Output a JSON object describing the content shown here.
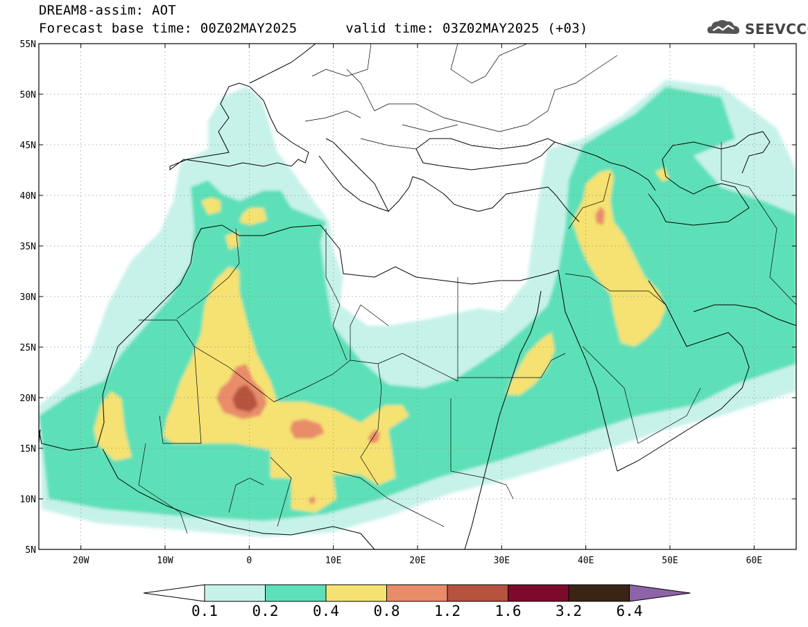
{
  "title": {
    "line1": "DREAM8-assim: AOT",
    "base_label": "Forecast base time: ",
    "base_time": "00Z02MAY2025",
    "valid_label": "valid time: ",
    "valid_time": "03Z02MAY2025 (+03)"
  },
  "logo": {
    "text": "SEEVCCC",
    "icon": "cloud-logo-icon"
  },
  "map": {
    "extent": {
      "lon_min": -25,
      "lon_max": 65,
      "lat_min": 5,
      "lat_max": 55
    },
    "lat_ticks": [
      {
        "value": 55,
        "label": "55N"
      },
      {
        "value": 50,
        "label": "50N"
      },
      {
        "value": 45,
        "label": "45N"
      },
      {
        "value": 40,
        "label": "40N"
      },
      {
        "value": 35,
        "label": "35N"
      },
      {
        "value": 30,
        "label": "30N"
      },
      {
        "value": 25,
        "label": "25N"
      },
      {
        "value": 20,
        "label": "20N"
      },
      {
        "value": 15,
        "label": "15N"
      },
      {
        "value": 10,
        "label": "10N"
      },
      {
        "value": 5,
        "label": "5N"
      }
    ],
    "lon_ticks": [
      {
        "value": -20,
        "label": "20W"
      },
      {
        "value": -10,
        "label": "10W"
      },
      {
        "value": 0,
        "label": "0"
      },
      {
        "value": 10,
        "label": "10E"
      },
      {
        "value": 20,
        "label": "20E"
      },
      {
        "value": 30,
        "label": "30E"
      },
      {
        "value": 40,
        "label": "40E"
      },
      {
        "value": 50,
        "label": "50E"
      },
      {
        "value": 60,
        "label": "60E"
      }
    ],
    "grid": true,
    "colors": {
      "level_0_1": "#c7f2ea",
      "level_0_2": "#5de0b8",
      "level_0_4": "#f5e272",
      "level_0_8": "#e98c6a",
      "level_1_2": "#b5533e",
      "level_1_6": "#7d0a2a",
      "level_3_2": "#3a2515",
      "level_6_4": "#8e64a8"
    }
  },
  "colorbar": {
    "labels": [
      "0.1",
      "0.2",
      "0.4",
      "0.8",
      "1.2",
      "1.6",
      "3.2",
      "6.4"
    ],
    "colors": [
      "#c7f2ea",
      "#5de0b8",
      "#f5e272",
      "#e98c6a",
      "#b5533e",
      "#7d0a2a",
      "#3a2515"
    ],
    "under_color": "#ffffff",
    "over_color": "#8e64a8"
  }
}
